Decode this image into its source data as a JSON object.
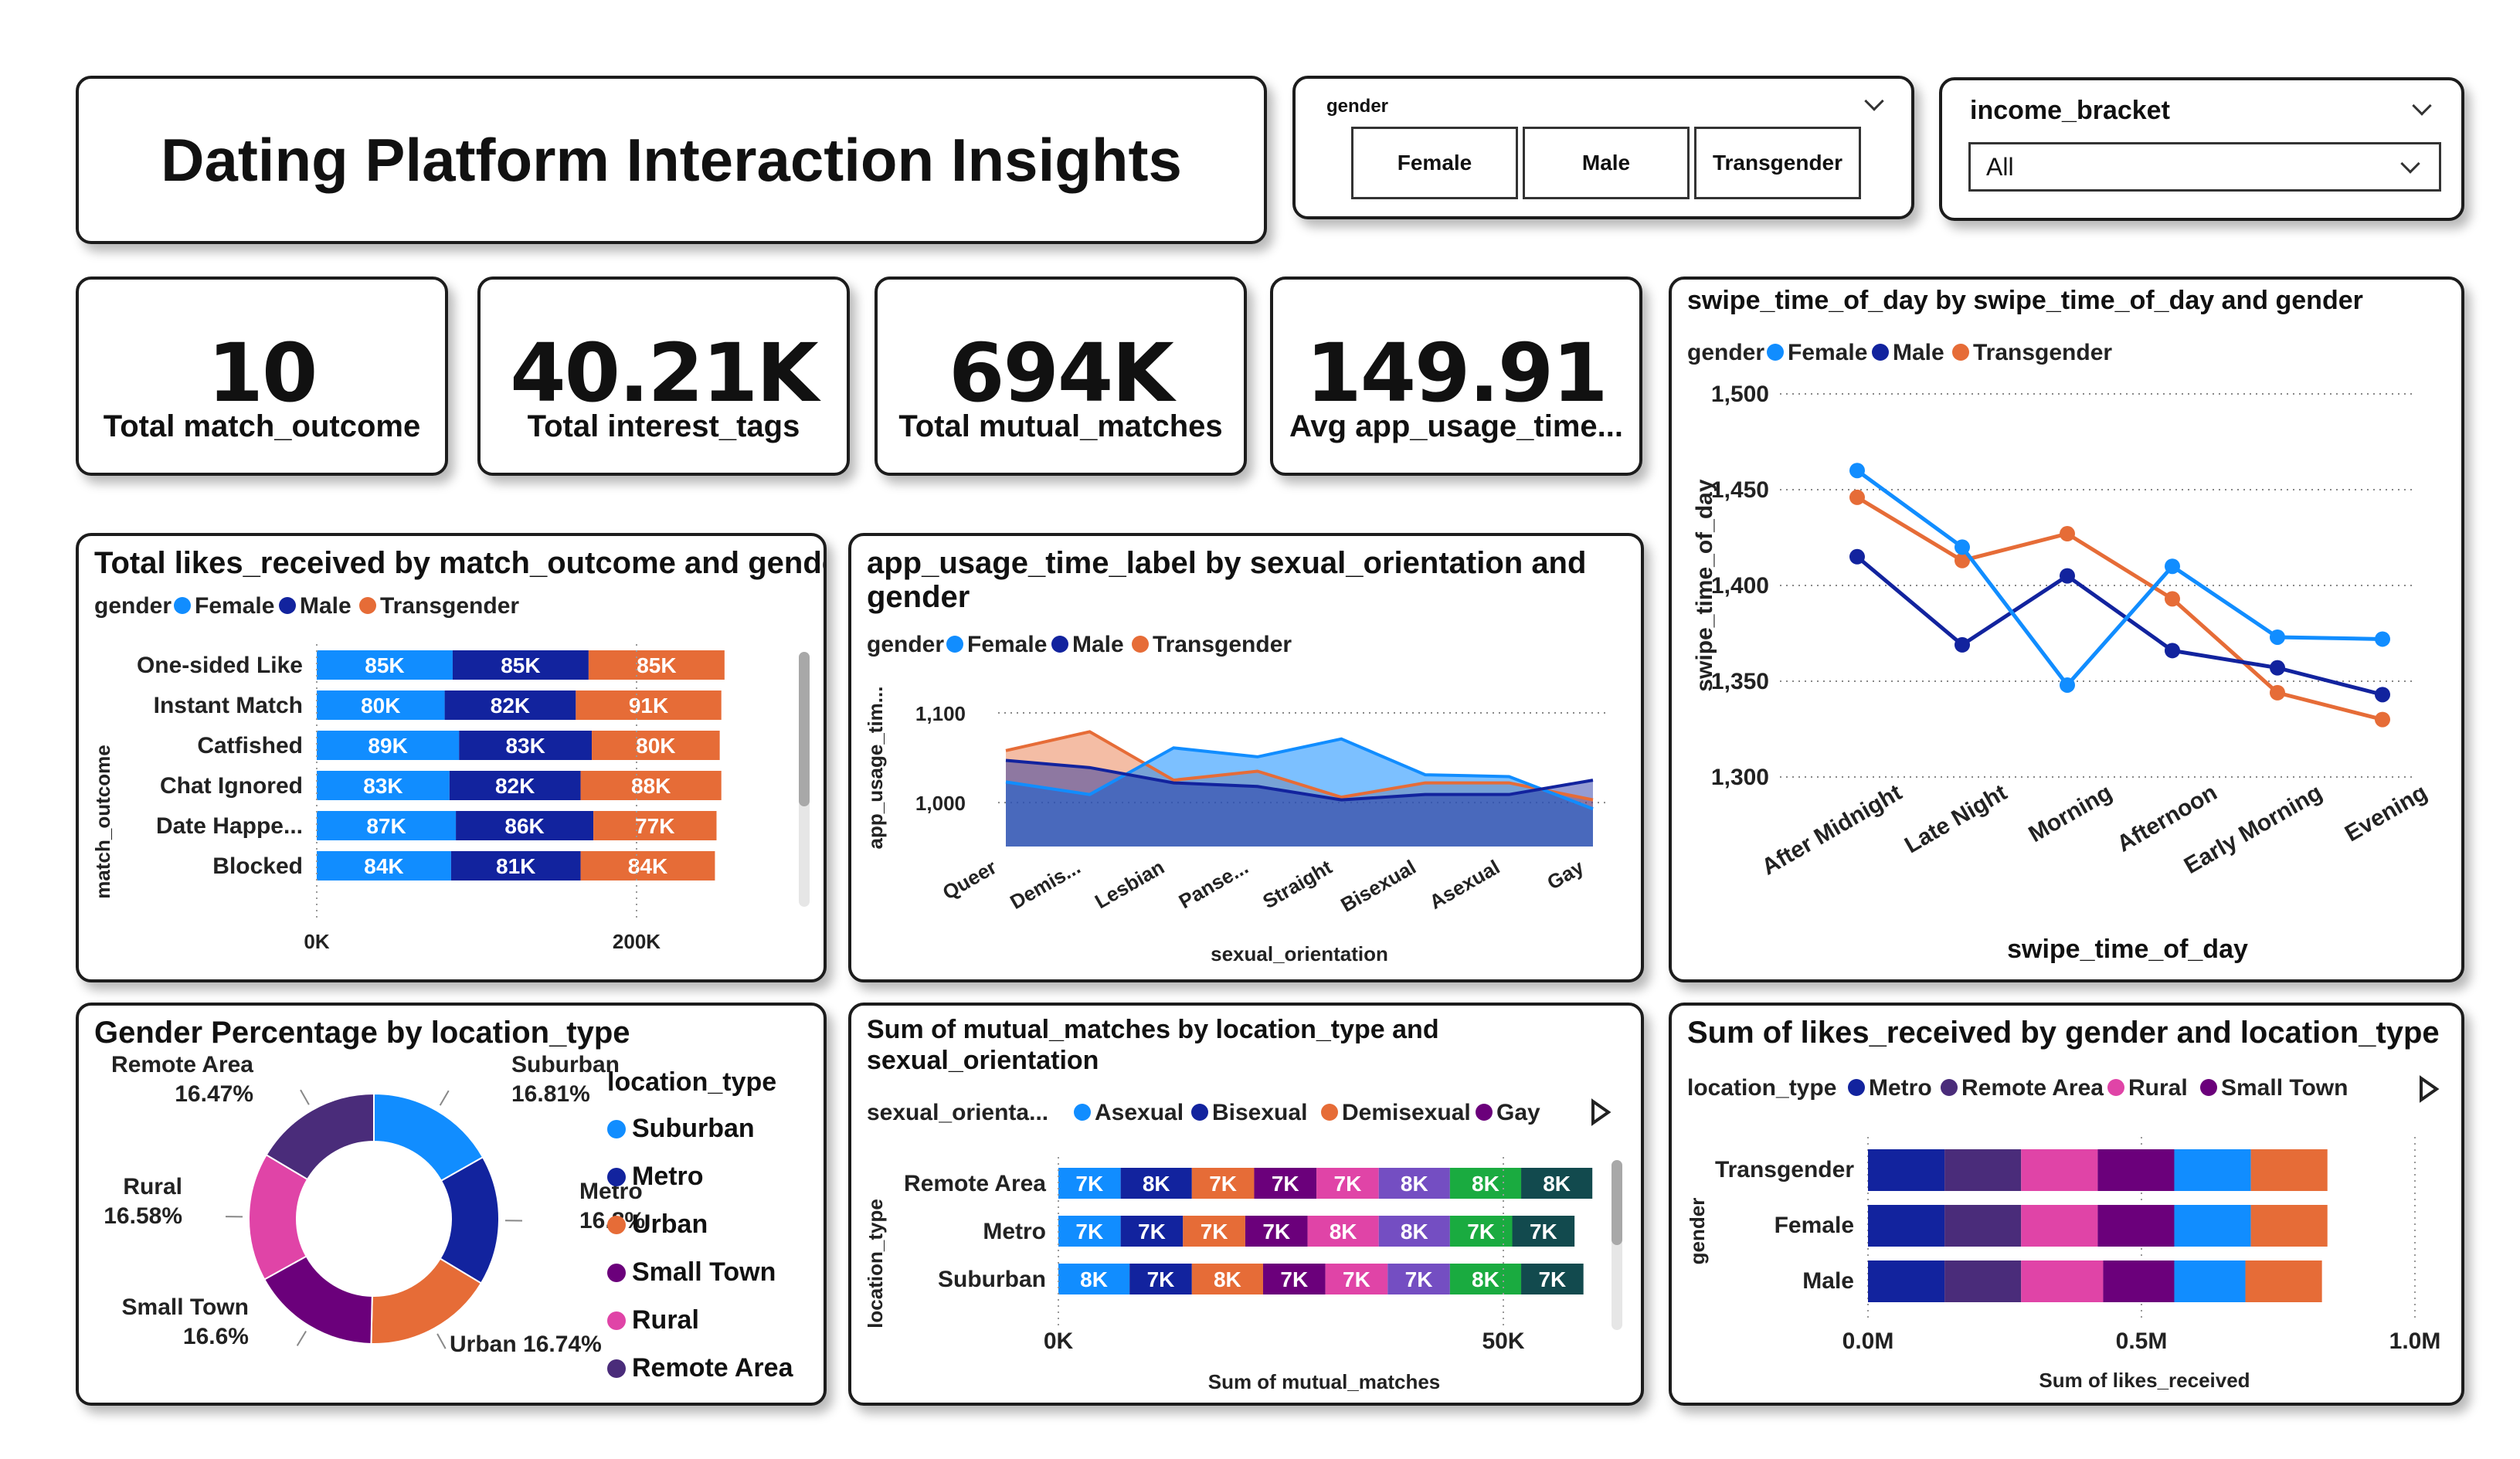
{
  "page": {
    "title": "Dating Platform Interaction Insights"
  },
  "colors": {
    "female": "#118DFF",
    "male": "#12239E",
    "transgender": "#E66C37",
    "suburban": "#118DFF",
    "metro": "#12239E",
    "urban": "#E66C37",
    "small_town": "#6B007B",
    "rural": "#E044A7",
    "remote_area": "#4A2C7A",
    "asexual": "#118DFF",
    "bisexual": "#12239E",
    "demisexual": "#E66C37",
    "gay": "#6B007B",
    "c5": "#E044A7",
    "c6": "#744EC2",
    "c7": "#1AAB40",
    "c8": "#124A4E"
  },
  "slicers": {
    "gender": {
      "label": "gender",
      "options": [
        "Female",
        "Male",
        "Transgender"
      ]
    },
    "income": {
      "label": "income_bracket",
      "selected": "All"
    }
  },
  "kpis": [
    {
      "value": "10",
      "label": "Total match_outcome"
    },
    {
      "value": "40.21K",
      "label": "Total interest_tags"
    },
    {
      "value": "694K",
      "label": "Total mutual_matches"
    },
    {
      "value": "149.91",
      "label": "Avg app_usage_time..."
    }
  ],
  "chart_data": [
    {
      "id": "likes_by_outcome",
      "type": "bar",
      "title": "Total likes_received by match_outcome and gender",
      "legend_title": "gender",
      "ylabel": "match_outcome",
      "categories": [
        "One-sided Like",
        "Instant Match",
        "Catfished",
        "Chat Ignored",
        "Date Happe...",
        "Blocked"
      ],
      "series": [
        {
          "name": "Female",
          "values": [
            85,
            80,
            89,
            83,
            87,
            84
          ],
          "labels": [
            "85K",
            "80K",
            "89K",
            "83K",
            "87K",
            "84K"
          ]
        },
        {
          "name": "Male",
          "values": [
            85,
            82,
            83,
            82,
            86,
            81
          ],
          "labels": [
            "85K",
            "82K",
            "83K",
            "82K",
            "86K",
            "81K"
          ]
        },
        {
          "name": "Transgender",
          "values": [
            85,
            91,
            80,
            88,
            77,
            84
          ],
          "labels": [
            "85K",
            "91K",
            "80K",
            "88K",
            "77K",
            "84K"
          ]
        }
      ],
      "x_ticks": [
        "0K",
        "200K"
      ],
      "xlim": [
        0,
        320
      ]
    },
    {
      "id": "usage_by_orientation",
      "type": "area",
      "title_lines": [
        "app_usage_time_label by sexual_orientation and",
        "gender"
      ],
      "legend_title": "gender",
      "xlabel": "sexual_orientation",
      "ylabel": "app_usage_tim...",
      "categories": [
        "Queer",
        "Demis...",
        "Lesbian",
        "Panse...",
        "Straight",
        "Bisexual",
        "Asexual",
        "Gay"
      ],
      "series": [
        {
          "name": "Female",
          "values": [
            1023,
            1009,
            1061,
            1051,
            1071,
            1031,
            1029,
            993
          ]
        },
        {
          "name": "Male",
          "values": [
            1047,
            1039,
            1022,
            1018,
            1003,
            1009,
            1009,
            1025
          ]
        },
        {
          "name": "Transgender",
          "values": [
            1058,
            1079,
            1025,
            1035,
            1006,
            1022,
            1022,
            1003
          ]
        }
      ],
      "y_ticks": [
        "1,000",
        "1,100"
      ],
      "ylim": [
        951,
        1125
      ]
    },
    {
      "id": "swipe_time",
      "type": "line",
      "title": "swipe_time_of_day by swipe_time_of_day and gender",
      "legend_title": "gender",
      "xlabel": "swipe_time_of_day",
      "ylabel": "swipe_time_of_day",
      "categories": [
        "After Midnight",
        "Late Night",
        "Morning",
        "Afternoon",
        "Early Morning",
        "Evening"
      ],
      "series": [
        {
          "name": "Female",
          "values": [
            1460,
            1420,
            1348,
            1410,
            1373,
            1372
          ]
        },
        {
          "name": "Male",
          "values": [
            1415,
            1369,
            1405,
            1366,
            1357,
            1343
          ]
        },
        {
          "name": "Transgender",
          "values": [
            1446,
            1413,
            1427,
            1393,
            1344,
            1330
          ]
        }
      ],
      "y_ticks": [
        "1,300",
        "1,350",
        "1,400",
        "1,450",
        "1,500"
      ],
      "ylim": [
        1300,
        1500
      ]
    },
    {
      "id": "gender_pct_location",
      "type": "pie",
      "title": "Gender Percentage by location_type",
      "legend_title": "location_type",
      "slices": [
        {
          "name": "Suburban",
          "value": 16.81,
          "label": "16.81%"
        },
        {
          "name": "Metro",
          "value": 16.8,
          "label": "16.8%"
        },
        {
          "name": "Urban",
          "value": 16.74,
          "label": "16.74%"
        },
        {
          "name": "Small Town",
          "value": 16.6,
          "label": "16.6%"
        },
        {
          "name": "Rural",
          "value": 16.58,
          "label": "16.58%"
        },
        {
          "name": "Remote Area",
          "value": 16.47,
          "label": "16.47%"
        }
      ]
    },
    {
      "id": "mutual_by_location",
      "type": "bar",
      "title_lines": [
        "Sum of mutual_matches by location_type and",
        "sexual_orientation"
      ],
      "legend_title": "sexual_orienta...",
      "legend_visible": [
        "Asexual",
        "Bisexual",
        "Demisexual",
        "Gay"
      ],
      "xlabel": "Sum of mutual_matches",
      "ylabel": "location_type",
      "categories": [
        "Remote Area",
        "Metro",
        "Suburban"
      ],
      "series_labels": [
        [
          "7K",
          "8K",
          "7K",
          "7K",
          "7K",
          "8K",
          "8K",
          "8K"
        ],
        [
          "7K",
          "7K",
          "7K",
          "7K",
          "8K",
          "8K",
          "7K",
          "7K"
        ],
        [
          "8K",
          "7K",
          "8K",
          "7K",
          "7K",
          "7K",
          "8K",
          "7K"
        ]
      ],
      "series_values": [
        [
          7,
          8,
          7,
          7,
          7,
          8,
          8,
          8
        ],
        [
          7,
          7,
          7,
          7,
          8,
          8,
          7,
          7
        ],
        [
          8,
          7,
          8,
          7,
          7,
          7,
          8,
          7
        ]
      ],
      "x_ticks": [
        "0K",
        "50K"
      ],
      "xlim": [
        0,
        50
      ]
    },
    {
      "id": "likes_by_gender_location",
      "type": "bar",
      "title": "Sum of likes_received by gender and location_type",
      "legend_title": "location_type",
      "legend_visible": [
        "Metro",
        "Remote Area",
        "Rural",
        "Small Town"
      ],
      "xlabel": "Sum of likes_received",
      "ylabel": "gender",
      "categories": [
        "Transgender",
        "Female",
        "Male"
      ],
      "series": [
        {
          "name": "Metro",
          "values": [
            0.14,
            0.14,
            0.14
          ]
        },
        {
          "name": "Remote Area",
          "values": [
            0.14,
            0.14,
            0.14
          ]
        },
        {
          "name": "Rural",
          "values": [
            0.14,
            0.14,
            0.15
          ]
        },
        {
          "name": "Small Town",
          "values": [
            0.14,
            0.14,
            0.13
          ]
        },
        {
          "name": "Suburban",
          "values": [
            0.14,
            0.14,
            0.13
          ]
        },
        {
          "name": "Urban",
          "values": [
            0.14,
            0.14,
            0.14
          ]
        }
      ],
      "x_ticks": [
        "0.0M",
        "0.5M",
        "1.0M"
      ],
      "xlim": [
        0,
        1.0
      ]
    }
  ]
}
